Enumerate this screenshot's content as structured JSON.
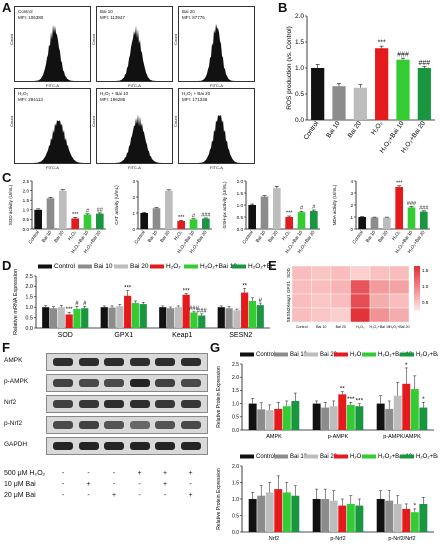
{
  "letters": {
    "A": "A",
    "B": "B",
    "C": "C",
    "D": "D",
    "E": "E",
    "F": "F",
    "G": "G"
  },
  "colors": {
    "control": "#111111",
    "bai10": "#8c8c8c",
    "bai20": "#bdbdbd",
    "h2o2": "#e41a1c",
    "h2o2_bai10": "#33cc33",
    "h2o2_bai20": "#1a9641"
  },
  "flow": [
    {
      "group": "Control",
      "mfi": "MFI: 106380"
    },
    {
      "group": "Bai 10",
      "mfi": "MFI: 113947"
    },
    {
      "group": "Bai 20",
      "mfi": "MFI: 87776"
    },
    {
      "group": "H₂O₂",
      "mfi": "MFI: 284113"
    },
    {
      "group": "H₂O₂ + Bai 10",
      "mfi": "MFI: 196285"
    },
    {
      "group": "H₂O₂ + Bai 20",
      "mfi": "MFI: 171338"
    }
  ],
  "flow_axis": {
    "x": "FITC-A",
    "y": "Count"
  },
  "legend": [
    "Control",
    "Bai 10",
    "Bai 20",
    "H₂O₂",
    "H₂O₂+Bai 10",
    "H₂O₂+Bai 20"
  ],
  "chart_data": [
    {
      "id": "B",
      "type": "bar",
      "ylabel": "ROS production (vs. Control)",
      "ylim": [
        0,
        2.0
      ],
      "yticks": [
        "0.0",
        "0.5",
        "1.0",
        "1.5",
        "2.0"
      ],
      "categories": [
        "Control",
        "Bai 10",
        "Bai 20",
        "H₂O₂",
        "H₂O₂+Bai 10",
        "H₂O₂+Bai 20"
      ],
      "values": [
        1.0,
        0.65,
        0.62,
        1.38,
        1.16,
        1.0
      ],
      "errors": [
        0.07,
        0.05,
        0.06,
        0.04,
        0.03,
        0.03
      ],
      "annotations": [
        "",
        "",
        "",
        "***",
        "###",
        "###"
      ]
    },
    {
      "id": "C1",
      "type": "bar",
      "ylabel": "SOD activity (U/mL)",
      "ylim": [
        0,
        2.5
      ],
      "yticks": [
        "0.0",
        "0.5",
        "1.0",
        "1.5",
        "2.0",
        "2.5"
      ],
      "categories": [
        "Control",
        "Bai 10",
        "Bai 20",
        "H₂O₂",
        "H₂O₂+Bai 10",
        "H₂O₂+Bai 20"
      ],
      "values": [
        1.0,
        1.6,
        2.0,
        0.55,
        0.75,
        0.8
      ],
      "errors": [
        0.05,
        0.05,
        0.05,
        0.05,
        0.04,
        0.04
      ],
      "annotations": [
        "",
        "",
        "",
        "***",
        "#",
        "##"
      ]
    },
    {
      "id": "C2",
      "type": "bar",
      "ylabel": "CAT activity (U/mL)",
      "ylim": [
        0,
        3
      ],
      "yticks": [
        "0",
        "1",
        "2",
        "3"
      ],
      "categories": [
        "Control",
        "Bai 10",
        "Bai 20",
        "H₂O₂",
        "H₂O₂+Bai 10",
        "H₂O₂+Bai 20"
      ],
      "values": [
        1.0,
        1.3,
        2.4,
        0.5,
        0.6,
        0.65
      ],
      "errors": [
        0.04,
        0.04,
        0.05,
        0.04,
        0.04,
        0.04
      ],
      "annotations": [
        "",
        "",
        "",
        "***",
        "#",
        "###"
      ]
    },
    {
      "id": "C3",
      "type": "bar",
      "ylabel": "GSH-px activity (U/mL)",
      "ylim": [
        0,
        2.0
      ],
      "yticks": [
        "0.0",
        "0.5",
        "1.0",
        "1.5",
        "2.0"
      ],
      "categories": [
        "Control",
        "Bai 10",
        "Bai 20",
        "H₂O₂",
        "H₂O₂+Bai 10",
        "H₂O₂+Bai 20"
      ],
      "values": [
        1.0,
        1.35,
        1.7,
        0.5,
        0.7,
        0.75
      ],
      "errors": [
        0.04,
        0.04,
        0.08,
        0.04,
        0.04,
        0.04
      ],
      "annotations": [
        "",
        "",
        "",
        "***",
        "#",
        "#"
      ]
    },
    {
      "id": "C4",
      "type": "bar",
      "ylabel": "MDA activity (U/mL)",
      "ylim": [
        0,
        4
      ],
      "yticks": [
        "0",
        "1",
        "2",
        "3",
        "4"
      ],
      "categories": [
        "Control",
        "Bai 10",
        "Bai 20",
        "H₂O₂",
        "H₂O₂+Bai 10",
        "H₂O₂+Bai 20"
      ],
      "values": [
        1.0,
        0.95,
        0.95,
        3.5,
        1.8,
        1.45
      ],
      "errors": [
        0.04,
        0.04,
        0.04,
        0.1,
        0.08,
        0.06
      ],
      "annotations": [
        "",
        "",
        "",
        "***",
        "###",
        "###"
      ]
    },
    {
      "id": "D",
      "type": "bar",
      "ylabel": "Relative mRNA Expression",
      "ylim": [
        0,
        2.5
      ],
      "yticks": [
        "0.0",
        "0.5",
        "1.0",
        "1.5",
        "2.0",
        "2.5"
      ],
      "categories": [
        "SOD",
        "GPX1",
        "Keap1",
        "SESN2"
      ],
      "series": [
        {
          "name": "Control",
          "values": [
            1.0,
            1.0,
            1.0,
            1.0
          ],
          "errors": [
            0.08,
            0.06,
            0.06,
            0.06
          ],
          "annotations": [
            "",
            "",
            "",
            ""
          ]
        },
        {
          "name": "Bai 10",
          "values": [
            0.95,
            0.98,
            0.95,
            0.95
          ],
          "errors": [
            0.08,
            0.08,
            0.06,
            0.08
          ],
          "annotations": [
            "",
            "",
            "",
            ""
          ]
        },
        {
          "name": "Bai 20",
          "values": [
            1.0,
            1.05,
            1.0,
            0.85
          ],
          "errors": [
            0.08,
            0.08,
            0.06,
            0.06
          ],
          "annotations": [
            "",
            "",
            "",
            ""
          ]
        },
        {
          "name": "H₂O₂",
          "values": [
            0.65,
            1.55,
            1.6,
            1.7
          ],
          "errors": [
            0.1,
            0.25,
            0.06,
            0.2
          ],
          "annotations": [
            "***",
            "***",
            "***",
            "**"
          ]
        },
        {
          "name": "H₂O₂+Bai 10",
          "values": [
            0.92,
            1.2,
            0.75,
            1.3
          ],
          "errors": [
            0.12,
            0.1,
            0.06,
            0.15
          ],
          "annotations": [
            "#",
            "",
            "###",
            ""
          ]
        },
        {
          "name": "H₂O₂+Bai 20",
          "values": [
            0.95,
            1.15,
            0.6,
            1.1
          ],
          "errors": [
            0.1,
            0.08,
            0.08,
            0.1
          ],
          "annotations": [
            "#",
            "",
            "###",
            "#"
          ]
        }
      ]
    },
    {
      "id": "E",
      "type": "heatmap",
      "columns": [
        "Control",
        "Bai 10",
        "Bai 20",
        "H₂O₂",
        "H₂O₂+Bai 10",
        "H₂O₂+Bai 20"
      ],
      "rows": [
        "SOD",
        "GPX1",
        "Keap1",
        "SESN2"
      ],
      "values": [
        [
          0.2,
          0.15,
          0.2,
          0.1,
          0.18,
          0.2
        ],
        [
          0.2,
          0.2,
          0.25,
          0.8,
          0.4,
          0.35
        ],
        [
          0.2,
          0.15,
          0.2,
          0.85,
          0.3,
          0.2
        ],
        [
          0.2,
          0.15,
          0.1,
          1.0,
          0.45,
          0.3
        ]
      ],
      "scale_labels": [
        "1.5",
        "1.0",
        "0.5"
      ]
    },
    {
      "id": "G1",
      "type": "bar",
      "ylabel": "Relative Protein Expression",
      "ylim": [
        0,
        2.5
      ],
      "yticks": [
        "0.0",
        "0.5",
        "1.0",
        "1.5",
        "2.0",
        "2.5"
      ],
      "categories": [
        "AMPK",
        "p-AMPK",
        "p-AMPK/AMPK"
      ],
      "series": [
        {
          "name": "Control",
          "values": [
            1.0,
            1.0,
            1.0
          ],
          "errors": [
            0.2,
            0.1,
            0.3
          ],
          "annotations": [
            "",
            "",
            ""
          ]
        },
        {
          "name": "Bai 10",
          "values": [
            0.78,
            0.85,
            0.8
          ],
          "errors": [
            0.25,
            0.2,
            0.3
          ],
          "annotations": [
            "",
            "",
            ""
          ]
        },
        {
          "name": "Bai 20",
          "values": [
            0.75,
            0.9,
            1.3
          ],
          "errors": [
            0.2,
            0.2,
            0.5
          ],
          "annotations": [
            "",
            "",
            ""
          ]
        },
        {
          "name": "H₂O₂",
          "values": [
            0.8,
            1.35,
            1.75
          ],
          "errors": [
            0.25,
            0.1,
            0.6
          ],
          "annotations": [
            "",
            "**",
            "*"
          ]
        },
        {
          "name": "H₂O₂+Bai 10",
          "values": [
            0.9,
            0.95,
            1.55
          ],
          "errors": [
            0.2,
            0.1,
            0.5
          ],
          "annotations": [
            "",
            "***",
            ""
          ]
        },
        {
          "name": "H₂O₂+Bai 20",
          "values": [
            1.1,
            0.9,
            0.85
          ],
          "errors": [
            0.3,
            0.1,
            0.2
          ],
          "annotations": [
            "",
            "***",
            "*"
          ]
        }
      ]
    },
    {
      "id": "G2",
      "type": "bar",
      "ylabel": "Relative Protein Expression",
      "ylim": [
        0,
        2.0
      ],
      "yticks": [
        "0.0",
        "0.5",
        "1.0",
        "1.5",
        "2.0"
      ],
      "categories": [
        "Nrf2",
        "p-Nrf2",
        "p-Nrf2/Nrf2"
      ],
      "series": [
        {
          "name": "Control",
          "values": [
            1.0,
            1.0,
            1.0
          ],
          "errors": [
            0.2,
            0.3,
            0.25
          ],
          "annotations": [
            "",
            "",
            ""
          ]
        },
        {
          "name": "Bai 10",
          "values": [
            1.1,
            1.0,
            0.95
          ],
          "errors": [
            0.3,
            0.3,
            0.3
          ],
          "annotations": [
            "",
            "",
            ""
          ]
        },
        {
          "name": "Bai 20",
          "values": [
            1.2,
            0.95,
            0.85
          ],
          "errors": [
            0.3,
            0.3,
            0.25
          ],
          "annotations": [
            "",
            "",
            ""
          ]
        },
        {
          "name": "H₂O₂",
          "values": [
            1.3,
            0.8,
            0.7
          ],
          "errors": [
            0.4,
            0.2,
            0.15
          ],
          "annotations": [
            "",
            "",
            ""
          ]
        },
        {
          "name": "H₂O₂+Bai 10",
          "values": [
            1.2,
            0.85,
            0.6
          ],
          "errors": [
            0.3,
            0.25,
            0.1
          ],
          "annotations": [
            "",
            "",
            "*"
          ]
        },
        {
          "name": "H₂O₂+Bai 20",
          "values": [
            1.1,
            0.8,
            0.85
          ],
          "errors": [
            0.3,
            0.2,
            0.2
          ],
          "annotations": [
            "",
            "",
            ""
          ]
        }
      ]
    }
  ],
  "blots": {
    "rows": [
      "AMPK",
      "p-AMPK",
      "Nrf2",
      "p-Nrf2",
      "GAPDH"
    ],
    "intensity": [
      [
        0.9,
        0.9,
        0.9,
        0.9,
        0.9,
        0.9
      ],
      [
        0.8,
        0.75,
        0.75,
        0.95,
        0.8,
        0.75
      ],
      [
        0.8,
        0.85,
        0.9,
        0.9,
        0.85,
        0.85
      ],
      [
        0.75,
        0.8,
        0.7,
        0.6,
        0.7,
        0.75
      ],
      [
        0.95,
        0.95,
        0.95,
        0.95,
        0.95,
        0.95
      ]
    ],
    "treatments": [
      {
        "label": "500 μM H₂O₂",
        "signs": [
          "-",
          "-",
          "-",
          "+",
          "+",
          "+"
        ]
      },
      {
        "label": "10 μM Bai",
        "signs": [
          "-",
          "+",
          "-",
          "-",
          "+",
          "-"
        ]
      },
      {
        "label": "20 μM Bai",
        "signs": [
          "-",
          "-",
          "+",
          "-",
          "-",
          "+"
        ]
      }
    ]
  }
}
